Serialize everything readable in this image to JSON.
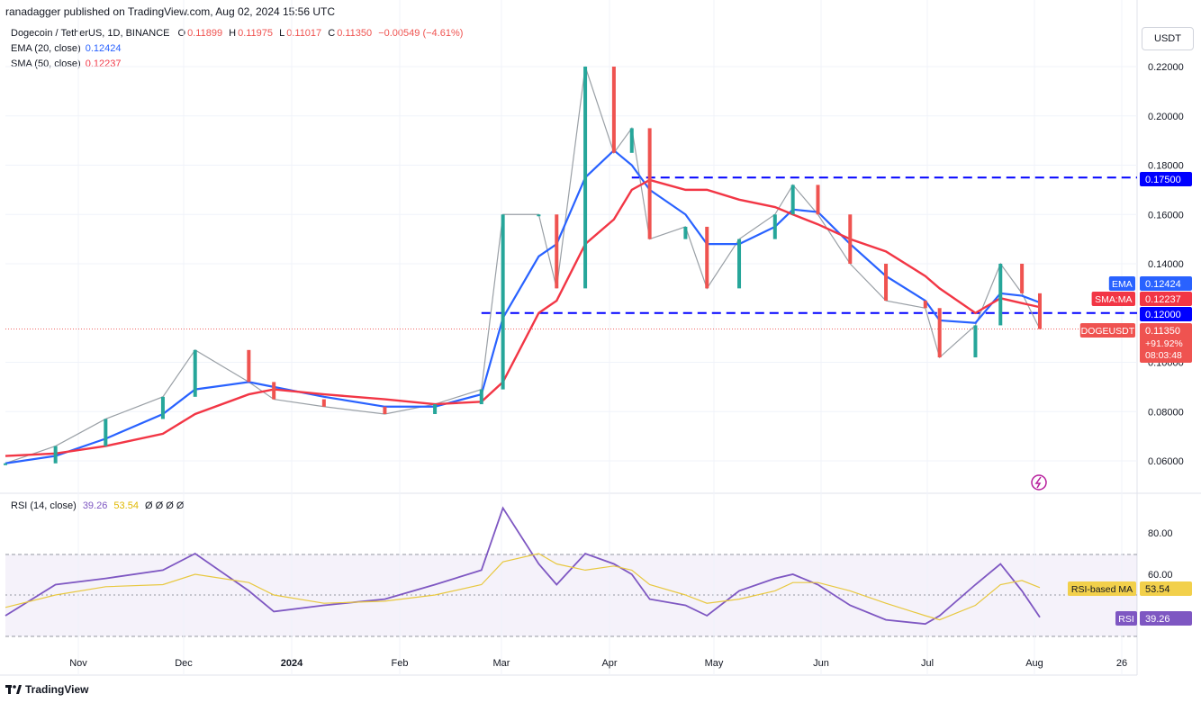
{
  "header": {
    "publisher": "ranadagger published on TradingView.com, Aug 02, 2024 15:56 UTC"
  },
  "legend": {
    "symbol": "Dogecoin / TetherUS, 1D, BINANCE",
    "o_label": "O",
    "o": "0.11899",
    "h_label": "H",
    "h": "0.11975",
    "l_label": "L",
    "l": "0.11017",
    "c_label": "C",
    "c": "0.11350",
    "change": "−0.00549 (−4.61%)",
    "ema_label": "EMA (20, close)",
    "ema_value": "0.12424",
    "sma_label": "SMA (50, close)",
    "sma_value": "0.12237"
  },
  "rsi_legend": {
    "label": "RSI (14, close)",
    "value": "39.26",
    "ma": "53.54",
    "extras": "Ø Ø Ø Ø"
  },
  "currency_button": "USDT",
  "price_tags": {
    "ema": {
      "label": "EMA",
      "value": "0.12424"
    },
    "sma": {
      "label": "SMA:MA",
      "value": "0.12237"
    },
    "level": {
      "value": "0.12000"
    },
    "resistance": {
      "value": "0.17500"
    },
    "current": {
      "label": "DOGEUSDT",
      "value": "0.11350",
      "change": "+91.92%",
      "timer": "08:03:48"
    },
    "rsi_ma": {
      "label": "RSI-based MA",
      "value": "53.54"
    },
    "rsi": {
      "label": "RSI",
      "value": "39.26"
    }
  },
  "footer": {
    "brand": "TradingView"
  },
  "colors": {
    "up": "#26a69a",
    "down": "#ef5350",
    "ema": "#2962ff",
    "sma": "#f23645",
    "rsi": "#7e57c2",
    "rsi_ma": "#f2d04b",
    "level": "#0000ff"
  },
  "chart_data": {
    "type": "line",
    "y_axis_ticks": [
      "0.22000",
      "0.20000",
      "0.18000",
      "0.16000",
      "0.14000",
      "0.10000",
      "0.08000",
      "0.06000"
    ],
    "x_axis_ticks": [
      "Nov",
      "Dec",
      "2024",
      "Feb",
      "Mar",
      "Apr",
      "May",
      "Jun",
      "Jul",
      "Aug",
      "26"
    ],
    "rsi_axis_ticks": [
      "80.00",
      "60.00"
    ],
    "ylim": [
      0.05,
      0.23
    ],
    "horizontal_levels": [
      0.175,
      0.12
    ],
    "dates": [
      "2023-10-18",
      "2023-11-01",
      "2023-11-15",
      "2023-12-01",
      "2023-12-10",
      "2023-12-25",
      "2024-01-01",
      "2024-01-15",
      "2024-02-01",
      "2024-02-15",
      "2024-02-28",
      "2024-03-05",
      "2024-03-15",
      "2024-03-20",
      "2024-03-28",
      "2024-04-05",
      "2024-04-10",
      "2024-04-15",
      "2024-04-25",
      "2024-05-01",
      "2024-05-10",
      "2024-05-20",
      "2024-05-25",
      "2024-06-01",
      "2024-06-10",
      "2024-06-20",
      "2024-07-01",
      "2024-07-05",
      "2024-07-15",
      "2024-07-22",
      "2024-07-28",
      "2024-08-02"
    ],
    "series": [
      {
        "name": "Dogecoin / TetherUS",
        "values": [
          0.059,
          0.066,
          0.077,
          0.086,
          0.105,
          0.092,
          0.085,
          0.082,
          0.079,
          0.083,
          0.089,
          0.16,
          0.16,
          0.13,
          0.22,
          0.185,
          0.195,
          0.15,
          0.155,
          0.13,
          0.15,
          0.16,
          0.172,
          0.16,
          0.14,
          0.125,
          0.122,
          0.102,
          0.115,
          0.14,
          0.128,
          0.1135
        ]
      },
      {
        "name": "EMA (20, close)",
        "values": [
          0.059,
          0.062,
          0.069,
          0.079,
          0.089,
          0.092,
          0.09,
          0.086,
          0.082,
          0.082,
          0.087,
          0.118,
          0.143,
          0.148,
          0.175,
          0.186,
          0.18,
          0.17,
          0.16,
          0.148,
          0.148,
          0.155,
          0.162,
          0.161,
          0.148,
          0.135,
          0.125,
          0.117,
          0.116,
          0.128,
          0.127,
          0.12424
        ]
      },
      {
        "name": "SMA (50, close)",
        "values": [
          0.062,
          0.063,
          0.066,
          0.071,
          0.079,
          0.087,
          0.089,
          0.087,
          0.085,
          0.083,
          0.084,
          0.092,
          0.12,
          0.125,
          0.148,
          0.158,
          0.17,
          0.174,
          0.17,
          0.17,
          0.166,
          0.163,
          0.16,
          0.156,
          0.15,
          0.145,
          0.135,
          0.13,
          0.12,
          0.126,
          0.124,
          0.12237
        ]
      },
      {
        "name": "RSI (14, close)",
        "values": [
          40,
          55,
          58,
          62,
          70,
          52,
          42,
          45,
          48,
          55,
          62,
          92,
          65,
          55,
          70,
          65,
          60,
          48,
          45,
          40,
          52,
          58,
          60,
          55,
          45,
          38,
          36,
          40,
          55,
          65,
          52,
          39.26
        ]
      },
      {
        "name": "RSI-based MA",
        "values": [
          44,
          50,
          54,
          55,
          60,
          56,
          50,
          46,
          47,
          50,
          55,
          66,
          70,
          65,
          62,
          64,
          62,
          55,
          50,
          46,
          48,
          52,
          56,
          56,
          52,
          46,
          40,
          38,
          45,
          55,
          57,
          53.54
        ]
      }
    ]
  }
}
